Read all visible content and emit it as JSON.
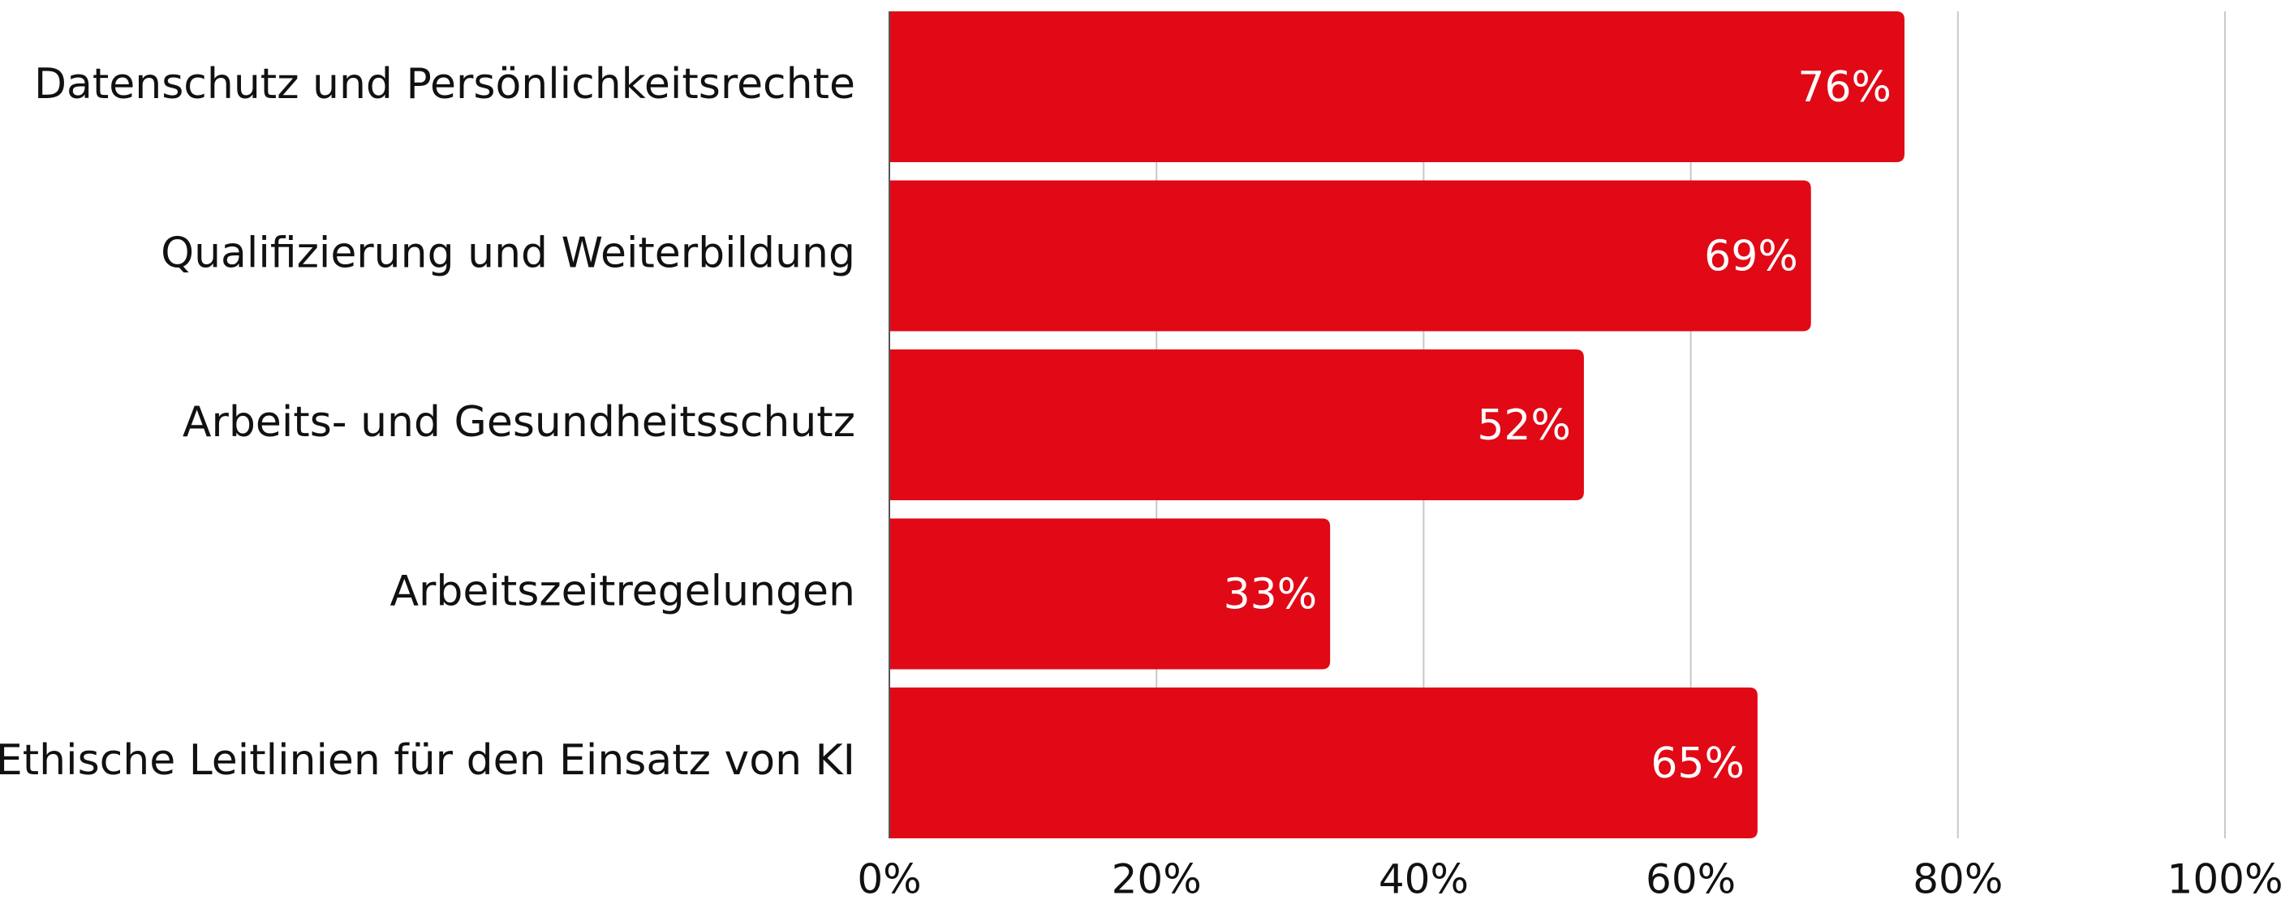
{
  "chart_data": {
    "type": "bar",
    "orientation": "horizontal",
    "categories": [
      "Datenschutz und Persönlichkeitsrechte",
      "Qualifizierung und Weiterbildung",
      "Arbeits- und Gesundheitsschutz",
      "Arbeitszeitregelungen",
      "Ethische Leitlinien für den Einsatz von KI"
    ],
    "values": [
      76,
      69,
      52,
      33,
      65
    ],
    "value_labels": [
      "76%",
      "69%",
      "52%",
      "33%",
      "65%"
    ],
    "color": "#e10916",
    "xlim": [
      0,
      100
    ],
    "xticks": [
      {
        "value": 0,
        "label": "0%"
      },
      {
        "value": 20,
        "label": "20%"
      },
      {
        "value": 40,
        "label": "40%"
      },
      {
        "value": 60,
        "label": "60%"
      },
      {
        "value": 80,
        "label": "80%"
      },
      {
        "value": 100,
        "label": "100%"
      }
    ],
    "grid": true
  }
}
